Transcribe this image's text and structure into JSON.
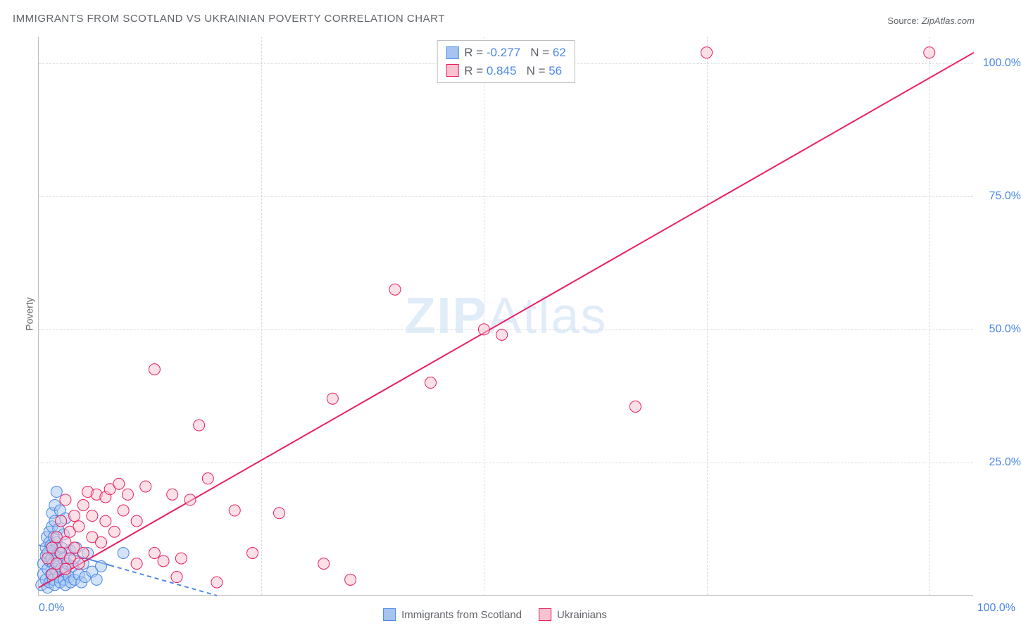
{
  "title": "IMMIGRANTS FROM SCOTLAND VS UKRAINIAN POVERTY CORRELATION CHART",
  "source_label": "Source:",
  "source_value": "ZipAtlas.com",
  "watermark_bold": "ZIP",
  "watermark_rest": "Atlas",
  "ylabel": "Poverty",
  "chart": {
    "type": "scatter",
    "xlim": [
      0,
      105
    ],
    "ylim": [
      0,
      105
    ],
    "xtick_positions": [
      0,
      25,
      50,
      75,
      100
    ],
    "xtick_labels": [
      "0.0%",
      "",
      "",
      "",
      "100.0%"
    ],
    "ytick_positions": [
      25,
      50,
      75,
      100
    ],
    "ytick_labels": [
      "25.0%",
      "50.0%",
      "75.0%",
      "100.0%"
    ],
    "grid_color": "#dcdcdc",
    "axis_color": "#bdbdbd",
    "tick_label_color": "#4a86e8",
    "background_color": "#ffffff",
    "marker_radius": 8,
    "series": [
      {
        "name": "Immigrants from Scotland",
        "color_fill": "#a5c5f0",
        "color_stroke": "#4a86e8",
        "fill_opacity": 0.5,
        "R": -0.277,
        "N": 62,
        "trend": {
          "x1": 0,
          "y1": 9.5,
          "x2": 20,
          "y2": 0,
          "dash_after_x": 8
        },
        "points": [
          [
            0.3,
            2.0
          ],
          [
            0.5,
            4.0
          ],
          [
            0.5,
            6.0
          ],
          [
            0.8,
            3.0
          ],
          [
            0.8,
            7.5
          ],
          [
            0.8,
            9.0
          ],
          [
            0.9,
            11.0
          ],
          [
            1.0,
            1.5
          ],
          [
            1.0,
            5.0
          ],
          [
            1.0,
            8.0
          ],
          [
            1.2,
            2.5
          ],
          [
            1.2,
            6.5
          ],
          [
            1.2,
            10.0
          ],
          [
            1.2,
            12.0
          ],
          [
            1.4,
            4.0
          ],
          [
            1.4,
            7.0
          ],
          [
            1.4,
            9.5
          ],
          [
            1.5,
            13.0
          ],
          [
            1.5,
            15.5
          ],
          [
            1.6,
            3.0
          ],
          [
            1.6,
            6.0
          ],
          [
            1.6,
            8.5
          ],
          [
            1.7,
            11.0
          ],
          [
            1.8,
            2.0
          ],
          [
            1.8,
            5.0
          ],
          [
            1.8,
            14.0
          ],
          [
            1.8,
            17.0
          ],
          [
            2.0,
            4.5
          ],
          [
            2.0,
            7.5
          ],
          [
            2.0,
            10.0
          ],
          [
            2.0,
            19.5
          ],
          [
            2.2,
            3.5
          ],
          [
            2.2,
            6.0
          ],
          [
            2.2,
            12.5
          ],
          [
            2.4,
            2.5
          ],
          [
            2.4,
            8.0
          ],
          [
            2.4,
            16.0
          ],
          [
            2.5,
            5.0
          ],
          [
            2.6,
            9.0
          ],
          [
            2.8,
            3.0
          ],
          [
            2.8,
            7.0
          ],
          [
            2.8,
            11.5
          ],
          [
            3.0,
            2.0
          ],
          [
            3.0,
            4.5
          ],
          [
            3.0,
            14.5
          ],
          [
            3.2,
            6.0
          ],
          [
            3.4,
            3.5
          ],
          [
            3.5,
            8.5
          ],
          [
            3.6,
            2.5
          ],
          [
            3.8,
            5.5
          ],
          [
            4.0,
            3.0
          ],
          [
            4.0,
            7.0
          ],
          [
            4.2,
            9.0
          ],
          [
            4.5,
            4.0
          ],
          [
            4.8,
            2.5
          ],
          [
            5.0,
            6.0
          ],
          [
            5.2,
            3.5
          ],
          [
            5.5,
            8.0
          ],
          [
            6.0,
            4.5
          ],
          [
            6.5,
            3.0
          ],
          [
            7.0,
            5.5
          ],
          [
            9.5,
            8.0
          ]
        ]
      },
      {
        "name": "Ukrainians",
        "color_fill": "#f8c2ce",
        "color_stroke": "#e91e63",
        "fill_opacity": 0.5,
        "R": 0.845,
        "N": 56,
        "trend": {
          "x1": 0,
          "y1": 1.5,
          "x2": 105,
          "y2": 102,
          "dash_after_x": 999
        },
        "points": [
          [
            1.0,
            7.0
          ],
          [
            1.5,
            4.0
          ],
          [
            1.5,
            9.0
          ],
          [
            2.0,
            6.0
          ],
          [
            2.0,
            11.0
          ],
          [
            2.5,
            8.0
          ],
          [
            2.5,
            14.0
          ],
          [
            3.0,
            5.0
          ],
          [
            3.0,
            10.0
          ],
          [
            3.0,
            18.0
          ],
          [
            3.5,
            7.0
          ],
          [
            3.5,
            12.0
          ],
          [
            4.0,
            9.0
          ],
          [
            4.0,
            15.0
          ],
          [
            4.5,
            6.0
          ],
          [
            4.5,
            13.0
          ],
          [
            5.0,
            8.0
          ],
          [
            5.0,
            17.0
          ],
          [
            5.5,
            19.5
          ],
          [
            6.0,
            11.0
          ],
          [
            6.0,
            15.0
          ],
          [
            6.5,
            19.0
          ],
          [
            7.0,
            10.0
          ],
          [
            7.5,
            14.0
          ],
          [
            7.5,
            18.5
          ],
          [
            8.0,
            20.0
          ],
          [
            8.5,
            12.0
          ],
          [
            9.0,
            21.0
          ],
          [
            9.5,
            16.0
          ],
          [
            10.0,
            19.0
          ],
          [
            11.0,
            6.0
          ],
          [
            11.0,
            14.0
          ],
          [
            12.0,
            20.5
          ],
          [
            13.0,
            8.0
          ],
          [
            13.0,
            42.5
          ],
          [
            14.0,
            6.5
          ],
          [
            15.0,
            19.0
          ],
          [
            15.5,
            3.5
          ],
          [
            16.0,
            7.0
          ],
          [
            17.0,
            18.0
          ],
          [
            18.0,
            32.0
          ],
          [
            19.0,
            22.0
          ],
          [
            20.0,
            2.5
          ],
          [
            22.0,
            16.0
          ],
          [
            24.0,
            8.0
          ],
          [
            27.0,
            15.5
          ],
          [
            32.0,
            6.0
          ],
          [
            33.0,
            37.0
          ],
          [
            35.0,
            3.0
          ],
          [
            40.0,
            57.5
          ],
          [
            44.0,
            40.0
          ],
          [
            50.0,
            50.0
          ],
          [
            52.0,
            49.0
          ],
          [
            67.0,
            35.5
          ],
          [
            75.0,
            102.0
          ],
          [
            100.0,
            102.0
          ]
        ]
      }
    ]
  },
  "legend_top_template": {
    "R_label": "R =",
    "N_label": "N ="
  },
  "colors": {
    "title": "#5f6368",
    "watermark": "#c9ddf5"
  }
}
